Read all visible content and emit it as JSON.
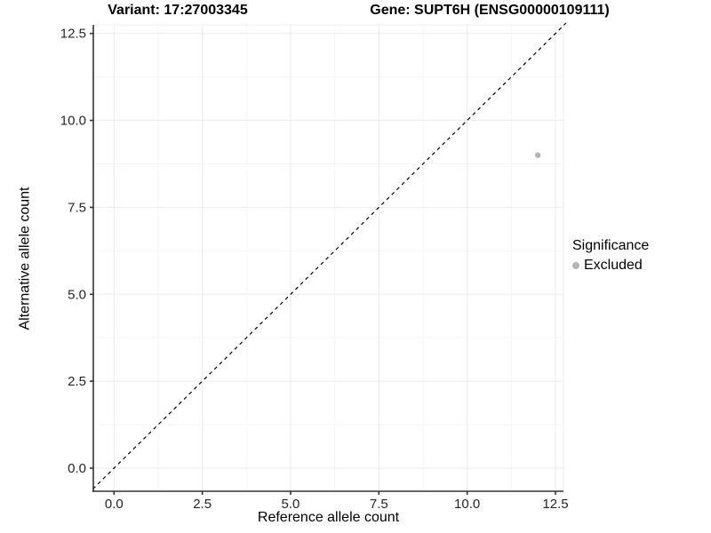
{
  "chart_data": {
    "type": "scatter",
    "titles": [
      "Variant: 17:27003345",
      "Gene: SUPT6H (ENSG00000109111)"
    ],
    "xlabel": "Reference allele count",
    "ylabel": "Alternative allele count",
    "xticks": [
      0.0,
      2.5,
      5.0,
      7.5,
      10.0,
      12.5
    ],
    "yticks": [
      0.0,
      2.5,
      5.0,
      7.5,
      10.0,
      12.5
    ],
    "xtick_labels": [
      "0.0",
      "2.5",
      "5.0",
      "7.5",
      "10.0",
      "12.5"
    ],
    "ytick_labels": [
      "0.0",
      "2.5",
      "5.0",
      "7.5",
      "10.0",
      "12.5"
    ],
    "xlim": [
      -0.6,
      12.8
    ],
    "ylim": [
      -0.65,
      12.8
    ],
    "grid": "major and minor, light gray on white",
    "points": [
      {
        "x": 12,
        "y": 9,
        "series": "Excluded"
      }
    ],
    "reference_line": {
      "type": "identity y=x",
      "style": "dashed",
      "color": "#000000"
    },
    "legend": {
      "title": "Significance",
      "position": "right",
      "entries": [
        {
          "label": "Excluded",
          "color": "#b5b5b5"
        }
      ]
    },
    "colors": {
      "point": "#b5b5b5",
      "axis_line": "#333333",
      "tick_mark": "#333333",
      "tick_label": "#262626",
      "grid_major": "#ebebeb",
      "grid_minor": "#f5f5f5",
      "panel_edge": "#ededed",
      "background": "#ffffff"
    }
  }
}
